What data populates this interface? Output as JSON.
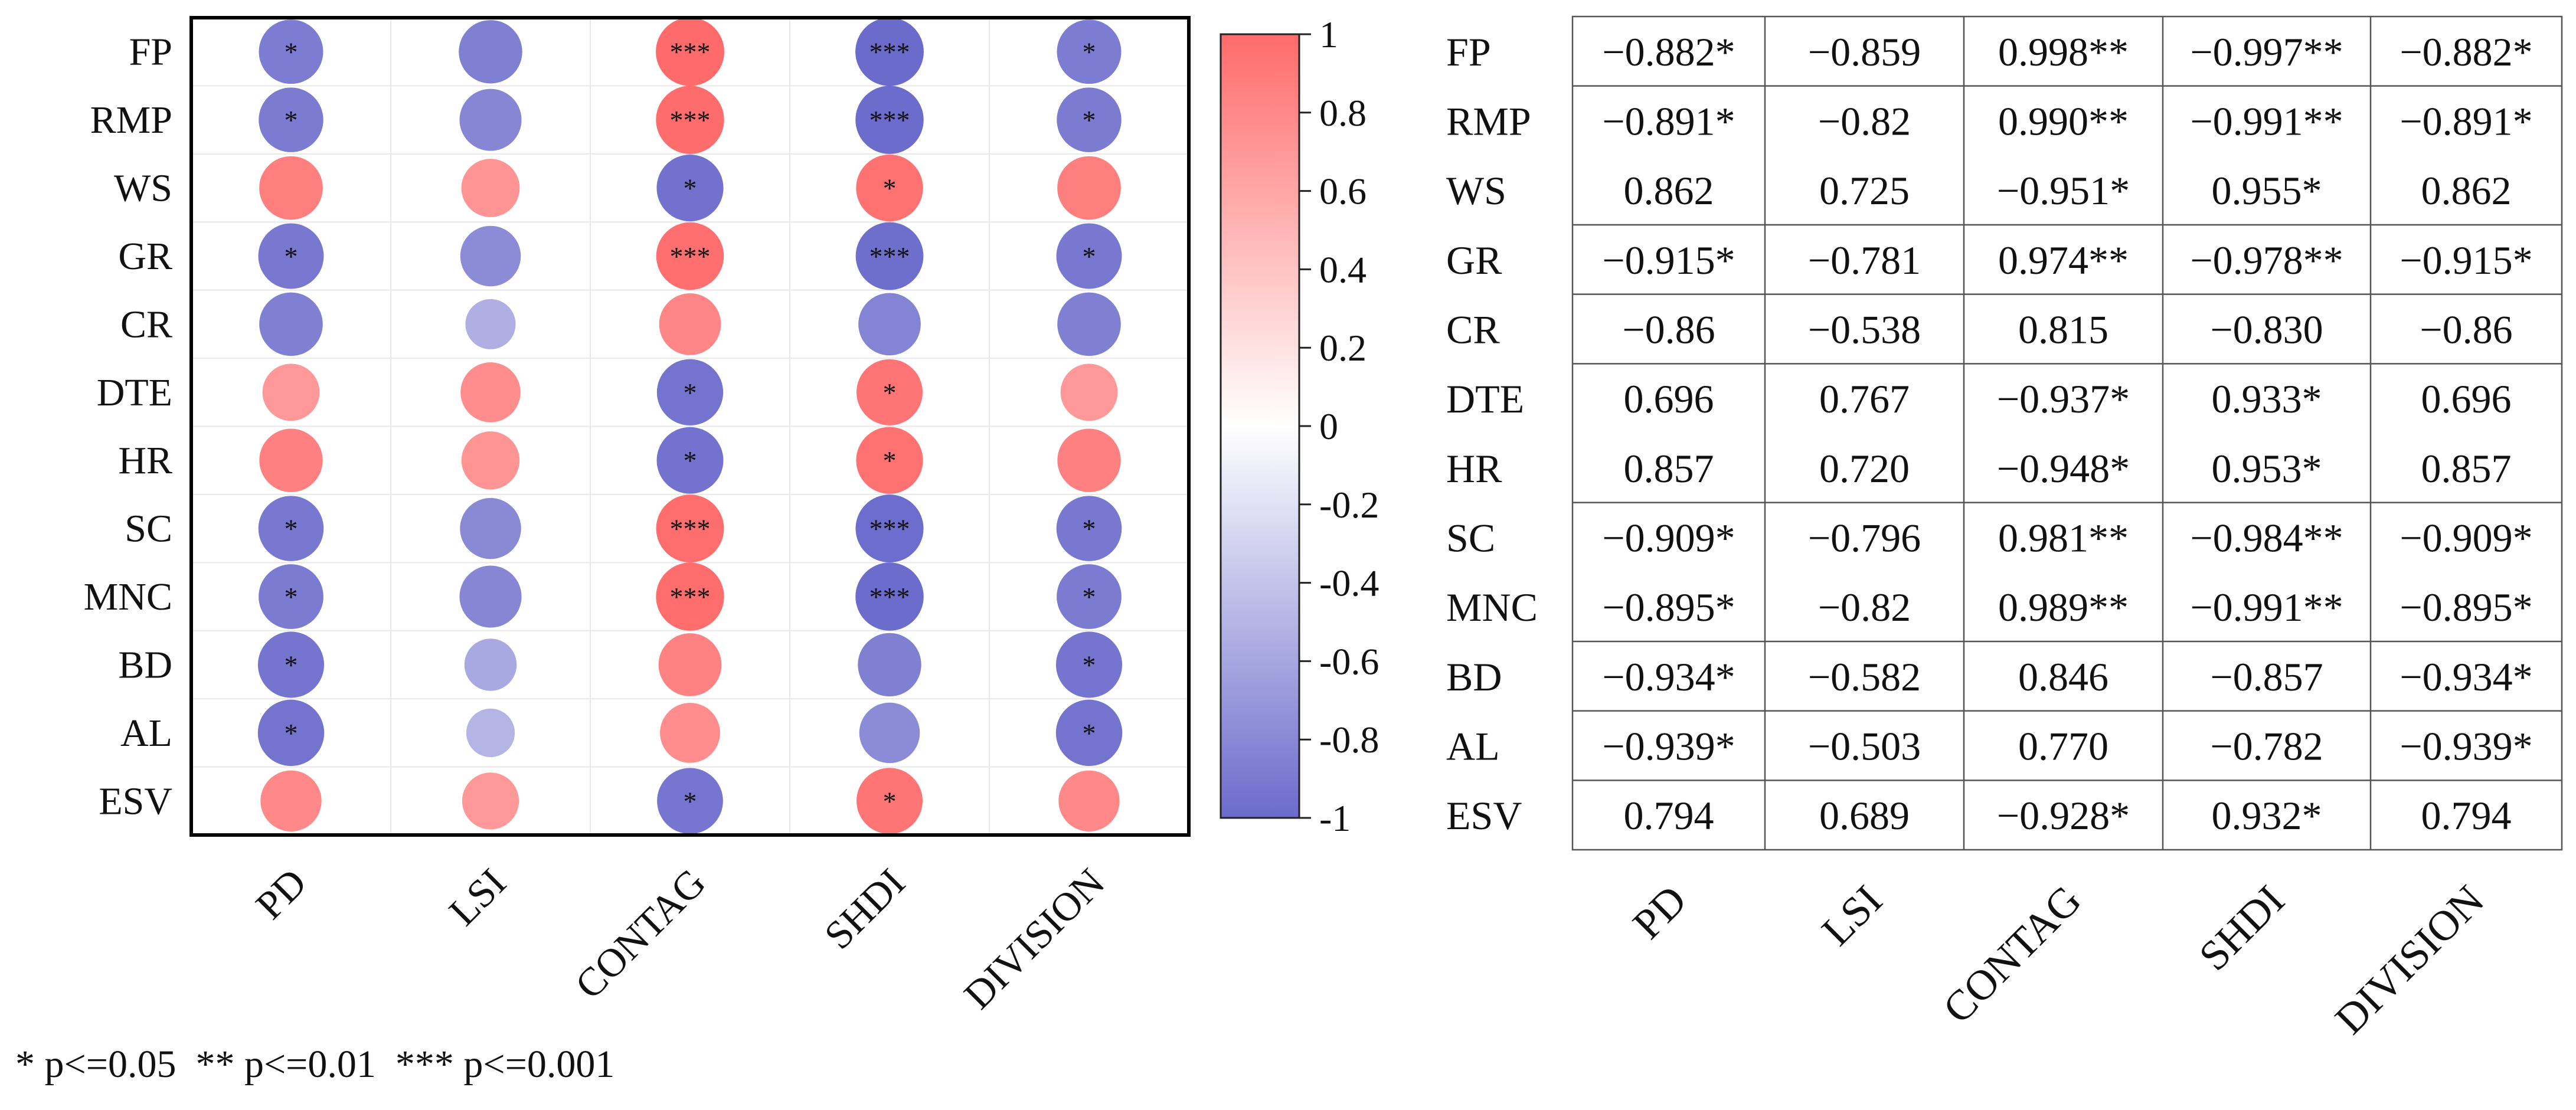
{
  "chart_data": [
    {
      "type": "heatmap",
      "title": "",
      "rows": [
        "FP",
        "RMP",
        "WS",
        "GR",
        "CR",
        "DTE",
        "HR",
        "SC",
        "MNC",
        "BD",
        "AL",
        "ESV"
      ],
      "columns": [
        "PD",
        "LSI",
        "CONTAG",
        "SHDI",
        "DIVISION"
      ],
      "values": [
        [
          -0.882,
          -0.859,
          0.998,
          -0.997,
          -0.882
        ],
        [
          -0.891,
          -0.82,
          0.99,
          -0.991,
          -0.891
        ],
        [
          0.862,
          0.725,
          -0.951,
          0.955,
          0.862
        ],
        [
          -0.915,
          -0.781,
          0.974,
          -0.978,
          -0.915
        ],
        [
          -0.86,
          -0.538,
          0.815,
          -0.83,
          -0.86
        ],
        [
          0.696,
          0.767,
          -0.937,
          0.933,
          0.696
        ],
        [
          0.857,
          0.72,
          -0.948,
          0.953,
          0.857
        ],
        [
          -0.909,
          -0.796,
          0.981,
          -0.984,
          -0.909
        ],
        [
          -0.895,
          -0.82,
          0.989,
          -0.991,
          -0.895
        ],
        [
          -0.934,
          -0.582,
          0.846,
          -0.857,
          -0.934
        ],
        [
          -0.939,
          -0.503,
          0.77,
          -0.782,
          -0.939
        ],
        [
          0.794,
          0.689,
          -0.928,
          0.932,
          0.794
        ]
      ],
      "significance": [
        [
          "*",
          "",
          "***",
          "***",
          "*"
        ],
        [
          "*",
          "",
          "***",
          "***",
          "*"
        ],
        [
          "",
          "",
          "*",
          "*",
          ""
        ],
        [
          "*",
          "",
          "***",
          "***",
          "*"
        ],
        [
          "",
          "",
          "",
          "",
          ""
        ],
        [
          "",
          "",
          "*",
          "*",
          ""
        ],
        [
          "",
          "",
          "*",
          "*",
          ""
        ],
        [
          "*",
          "",
          "***",
          "***",
          "*"
        ],
        [
          "*",
          "",
          "***",
          "***",
          "*"
        ],
        [
          "*",
          "",
          "",
          "",
          "*"
        ],
        [
          "*",
          "",
          "",
          "",
          "*"
        ],
        [
          "",
          "",
          "*",
          "*",
          ""
        ]
      ],
      "colorbar": {
        "min": -1,
        "max": 1,
        "ticks": [
          "1",
          "0.8",
          "0.6",
          "0.4",
          "0.2",
          "0",
          "-0.2",
          "-0.4",
          "-0.6",
          "-0.8",
          "-1"
        ],
        "colors": {
          "negative": "#6b6bcc",
          "zero": "#ffffff",
          "positive": "#ff6b6b"
        }
      },
      "legend_note": "* p<=0.05  ** p<=0.01  *** p<=0.001"
    },
    {
      "type": "table",
      "rows": [
        "FP",
        "RMP",
        "WS",
        "GR",
        "CR",
        "DTE",
        "HR",
        "SC",
        "MNC",
        "BD",
        "AL",
        "ESV"
      ],
      "columns": [
        "PD",
        "LSI",
        "CONTAG",
        "SHDI",
        "DIVISION"
      ],
      "cells": [
        [
          "−0.882*",
          "−0.859",
          "0.998**",
          "−0.997**",
          "−0.882*"
        ],
        [
          "−0.891*",
          "−0.82",
          "0.990**",
          "−0.991**",
          "−0.891*"
        ],
        [
          "0.862",
          "0.725",
          "−0.951*",
          "0.955*",
          "0.862"
        ],
        [
          "−0.915*",
          "−0.781",
          "0.974**",
          "−0.978**",
          "−0.915*"
        ],
        [
          "−0.86",
          "−0.538",
          "0.815",
          "−0.830",
          "−0.86"
        ],
        [
          "0.696",
          "0.767",
          "−0.937*",
          "0.933*",
          "0.696"
        ],
        [
          "0.857",
          "0.720",
          "−0.948*",
          "0.953*",
          "0.857"
        ],
        [
          "−0.909*",
          "−0.796",
          "0.981**",
          "−0.984**",
          "−0.909*"
        ],
        [
          "−0.895*",
          "−0.82",
          "0.989**",
          "−0.991**",
          "−0.895*"
        ],
        [
          "−0.934*",
          "−0.582",
          "0.846",
          "−0.857",
          "−0.934*"
        ],
        [
          "−0.939*",
          "−0.503",
          "0.770",
          "−0.782",
          "−0.939*"
        ],
        [
          "0.794",
          "0.689",
          "−0.928*",
          "0.932*",
          "0.794"
        ]
      ]
    }
  ]
}
